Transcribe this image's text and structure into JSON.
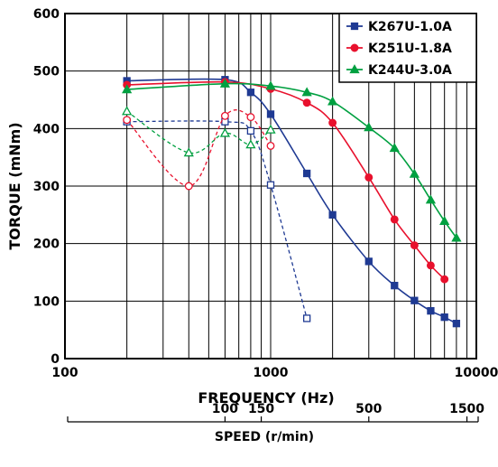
{
  "chart_data": {
    "type": "line",
    "xscale": "log",
    "xlim": [
      100,
      10000
    ],
    "ylim": [
      0,
      600
    ],
    "x_ticks": [
      "100",
      "1000",
      "10000"
    ],
    "y_ticks": [
      "0",
      "100",
      "200",
      "300",
      "400",
      "500",
      "600"
    ],
    "xlabel": "FREQUENCY (Hz)",
    "ylabel": "TORQUE (mNm)",
    "speed_axis": {
      "label": "SPEED (r/min)",
      "ticks": [
        {
          "label": "100",
          "value": 100
        },
        {
          "label": "150",
          "value": 150
        },
        {
          "label": "500",
          "value": 500
        },
        {
          "label": "1500",
          "value": 1500
        }
      ]
    },
    "grid": true,
    "legend_position": "top-right",
    "series": [
      {
        "name": "K267U-1.0A",
        "color": "#1f3a93",
        "marker": "square",
        "solid": {
          "x": [
            200,
            600,
            800,
            1000,
            1500,
            2000,
            3000,
            4000,
            5000,
            6000,
            7000,
            8000
          ],
          "y": [
            483,
            485,
            463,
            425,
            322,
            250,
            169,
            127,
            101,
            83,
            72,
            61
          ]
        },
        "dashed": {
          "x": [
            200,
            600,
            800,
            1000,
            1500
          ],
          "y": [
            412,
            412,
            396,
            302,
            70
          ]
        }
      },
      {
        "name": "K251U-1.8A",
        "color": "#e8112d",
        "marker": "circle",
        "solid": {
          "x": [
            200,
            600,
            1000,
            1500,
            2000,
            3000,
            4000,
            5000,
            6000,
            7000
          ],
          "y": [
            476,
            481,
            469,
            445,
            410,
            315,
            242,
            197,
            162,
            138
          ]
        },
        "dashed": {
          "x": [
            200,
            400,
            600,
            800,
            1000
          ],
          "y": [
            415,
            300,
            422,
            420,
            370
          ]
        }
      },
      {
        "name": "K244U-3.0A",
        "color": "#00a040",
        "marker": "triangle",
        "solid": {
          "x": [
            200,
            600,
            1000,
            1500,
            2000,
            3000,
            4000,
            5000,
            6000,
            7000,
            8000
          ],
          "y": [
            468,
            478,
            474,
            463,
            447,
            402,
            366,
            321,
            276,
            239,
            210
          ]
        },
        "dashed": {
          "x": [
            200,
            400,
            600,
            800,
            1000
          ],
          "y": [
            430,
            358,
            392,
            372,
            398
          ]
        }
      }
    ]
  }
}
